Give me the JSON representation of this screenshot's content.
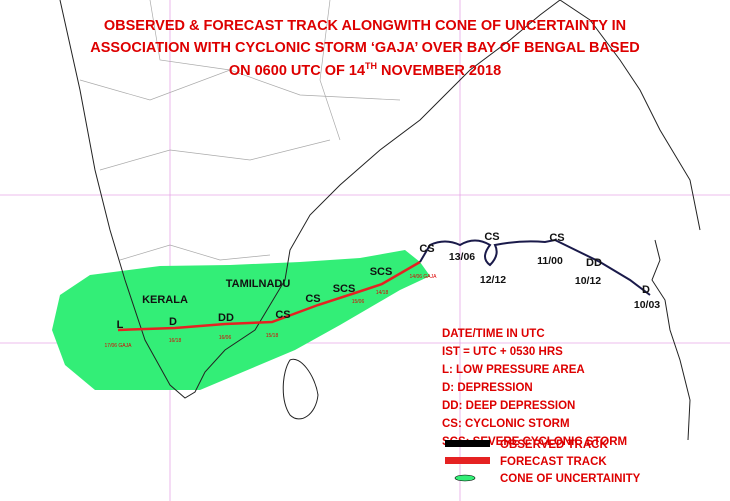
{
  "header": {
    "title_line1": "OBSERVED & FORECAST TRACK ALONGWITH CONE OF UNCERTAINTY IN",
    "title_line2": "ASSOCIATION WITH CYCLONIC STORM ‘GAJA’ OVER BAY OF BENGAL BASED",
    "title_line3_start": "ON 0600 UTC OF 14",
    "title_line3_sup": "TH",
    "title_line3_end": " NOVEMBER 2018"
  },
  "regions": [
    "KERALA",
    "TAMILNADU"
  ],
  "observed_track": {
    "stages": [
      "CS",
      "CS",
      "CS",
      "DD",
      "D"
    ],
    "times": [
      "13/06",
      "12/12",
      "11/00",
      "10/12",
      "10/03"
    ]
  },
  "forecast_track": {
    "stages": [
      "SCS",
      "SCS",
      "CS",
      "CS",
      "DD",
      "D",
      "L"
    ],
    "times": [
      "14/06 GAJA",
      "14/18",
      "15/06",
      "15/18",
      "16/06",
      "16/18",
      "17/06 GAJA"
    ]
  },
  "legend": {
    "notes": [
      "DATE/TIME IN UTC",
      "IST = UTC + 0530 HRS",
      "L: LOW PRESSURE AREA",
      "D: DEPRESSION",
      "DD: DEEP DEPRESSION",
      "CS: CYCLONIC STORM",
      "SCS: SEVERE CYCLONIC STORM"
    ],
    "items": [
      "OBSERVED TRACK",
      "FORECAST TRACK",
      "CONE OF UNCERTAINITY"
    ]
  }
}
